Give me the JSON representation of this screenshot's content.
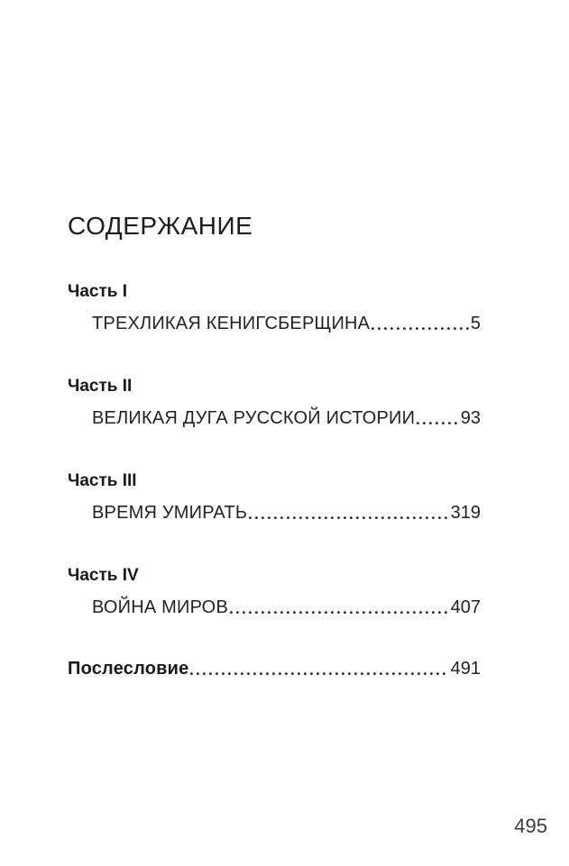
{
  "page": {
    "title": "СОДЕРЖАНИЕ",
    "folio": "495"
  },
  "toc": {
    "sections": [
      {
        "part": "Часть I",
        "chapter": "ТРЕХЛИКАЯ КЕНИГСБЕРЩИНА",
        "page": "5"
      },
      {
        "part": "Часть II",
        "chapter": "ВЕЛИКАЯ ДУГА РУССКОЙ ИСТОРИИ",
        "page": "93"
      },
      {
        "part": "Часть III",
        "chapter": "ВРЕМЯ УМИРАТЬ",
        "page": "319"
      },
      {
        "part": "Часть IV",
        "chapter": "ВОЙНА МИРОВ",
        "page": "407"
      }
    ],
    "afterword": {
      "label": "Послесловие",
      "page": "491"
    }
  },
  "colors": {
    "page_bg": "#ffffff",
    "text": "#1e1e1e",
    "folio_text": "#3c3c3c"
  }
}
